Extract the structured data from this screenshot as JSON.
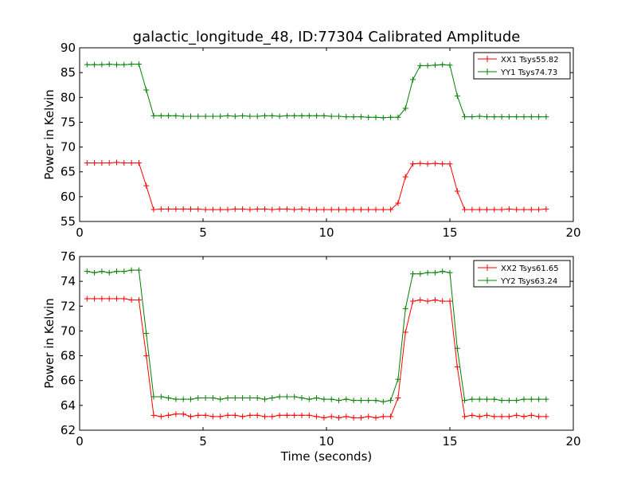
{
  "chart_data": [
    {
      "type": "line",
      "title": "galactic_longitude_48, ID:77304 Calibrated Amplitude",
      "xlabel": "",
      "ylabel": "Power in Kelvin",
      "xlim": [
        0,
        20
      ],
      "ylim": [
        55,
        90
      ],
      "xticks": [
        0,
        5,
        10,
        15,
        20
      ],
      "yticks": [
        55,
        60,
        65,
        70,
        75,
        80,
        85,
        90
      ],
      "grid": false,
      "legend_position": "top-right",
      "x": [
        0.3,
        0.6,
        0.9,
        1.2,
        1.5,
        1.8,
        2.1,
        2.4,
        2.7,
        3.0,
        3.3,
        3.6,
        3.9,
        4.2,
        4.5,
        4.8,
        5.1,
        5.4,
        5.7,
        6.0,
        6.3,
        6.6,
        6.9,
        7.2,
        7.5,
        7.8,
        8.1,
        8.4,
        8.7,
        9.0,
        9.3,
        9.6,
        9.9,
        10.2,
        10.5,
        10.8,
        11.1,
        11.4,
        11.7,
        12.0,
        12.3,
        12.6,
        12.9,
        13.2,
        13.5,
        13.8,
        14.1,
        14.4,
        14.7,
        15.0,
        15.3,
        15.6,
        15.9,
        16.2,
        16.5,
        16.8,
        17.1,
        17.4,
        17.7,
        18.0,
        18.3,
        18.6,
        18.9
      ],
      "series": [
        {
          "name": "XX1 Tsys55.82",
          "color": "#ff0000",
          "values": [
            66.8,
            66.8,
            66.8,
            66.8,
            66.9,
            66.8,
            66.8,
            66.8,
            62.2,
            57.4,
            57.5,
            57.5,
            57.5,
            57.5,
            57.5,
            57.5,
            57.4,
            57.4,
            57.4,
            57.4,
            57.5,
            57.5,
            57.4,
            57.5,
            57.5,
            57.4,
            57.5,
            57.5,
            57.4,
            57.5,
            57.4,
            57.4,
            57.4,
            57.4,
            57.4,
            57.4,
            57.4,
            57.4,
            57.4,
            57.4,
            57.4,
            57.4,
            58.7,
            64.0,
            66.6,
            66.7,
            66.6,
            66.7,
            66.6,
            66.6,
            61.1,
            57.4,
            57.4,
            57.4,
            57.4,
            57.4,
            57.4,
            57.5,
            57.4,
            57.4,
            57.4,
            57.4,
            57.5
          ]
        },
        {
          "name": "YY1 Tsys74.73",
          "color": "#008000",
          "values": [
            86.6,
            86.6,
            86.6,
            86.7,
            86.6,
            86.6,
            86.7,
            86.7,
            81.5,
            76.3,
            76.3,
            76.3,
            76.3,
            76.2,
            76.2,
            76.2,
            76.2,
            76.2,
            76.2,
            76.3,
            76.2,
            76.3,
            76.2,
            76.2,
            76.3,
            76.3,
            76.2,
            76.3,
            76.3,
            76.3,
            76.3,
            76.3,
            76.3,
            76.2,
            76.2,
            76.1,
            76.1,
            76.1,
            76.0,
            76.0,
            75.9,
            76.0,
            76.0,
            77.8,
            83.6,
            86.4,
            86.4,
            86.5,
            86.6,
            86.5,
            80.3,
            76.1,
            76.1,
            76.2,
            76.1,
            76.1,
            76.1,
            76.1,
            76.1,
            76.1,
            76.1,
            76.1,
            76.1
          ]
        }
      ]
    },
    {
      "type": "line",
      "title": "",
      "xlabel": "Time (seconds)",
      "ylabel": "Power in Kelvin",
      "xlim": [
        0,
        20
      ],
      "ylim": [
        62,
        76
      ],
      "xticks": [
        0,
        5,
        10,
        15,
        20
      ],
      "yticks": [
        62,
        64,
        66,
        68,
        70,
        72,
        74,
        76
      ],
      "grid": false,
      "legend_position": "top-right",
      "x": [
        0.3,
        0.6,
        0.9,
        1.2,
        1.5,
        1.8,
        2.1,
        2.4,
        2.7,
        3.0,
        3.3,
        3.6,
        3.9,
        4.2,
        4.5,
        4.8,
        5.1,
        5.4,
        5.7,
        6.0,
        6.3,
        6.6,
        6.9,
        7.2,
        7.5,
        7.8,
        8.1,
        8.4,
        8.7,
        9.0,
        9.3,
        9.6,
        9.9,
        10.2,
        10.5,
        10.8,
        11.1,
        11.4,
        11.7,
        12.0,
        12.3,
        12.6,
        12.9,
        13.2,
        13.5,
        13.8,
        14.1,
        14.4,
        14.7,
        15.0,
        15.3,
        15.6,
        15.9,
        16.2,
        16.5,
        16.8,
        17.1,
        17.4,
        17.7,
        18.0,
        18.3,
        18.6,
        18.9
      ],
      "series": [
        {
          "name": "XX2 Tsys61.65",
          "color": "#ff0000",
          "values": [
            72.6,
            72.6,
            72.6,
            72.6,
            72.6,
            72.6,
            72.5,
            72.5,
            68.0,
            63.2,
            63.1,
            63.2,
            63.3,
            63.3,
            63.1,
            63.2,
            63.2,
            63.1,
            63.1,
            63.2,
            63.2,
            63.1,
            63.2,
            63.2,
            63.1,
            63.1,
            63.2,
            63.2,
            63.2,
            63.2,
            63.2,
            63.1,
            63.0,
            63.1,
            63.0,
            63.1,
            63.0,
            63.0,
            63.1,
            63.0,
            63.1,
            63.1,
            64.6,
            69.9,
            72.4,
            72.5,
            72.4,
            72.5,
            72.4,
            72.4,
            67.1,
            63.1,
            63.2,
            63.1,
            63.2,
            63.1,
            63.1,
            63.1,
            63.2,
            63.1,
            63.2,
            63.1,
            63.1
          ]
        },
        {
          "name": "YY2 Tsys63.24",
          "color": "#008000",
          "values": [
            74.8,
            74.7,
            74.8,
            74.7,
            74.8,
            74.8,
            74.9,
            74.9,
            69.8,
            64.7,
            64.7,
            64.6,
            64.5,
            64.5,
            64.5,
            64.6,
            64.6,
            64.6,
            64.5,
            64.6,
            64.6,
            64.6,
            64.6,
            64.6,
            64.5,
            64.6,
            64.7,
            64.7,
            64.7,
            64.6,
            64.5,
            64.6,
            64.5,
            64.5,
            64.4,
            64.5,
            64.4,
            64.4,
            64.4,
            64.4,
            64.3,
            64.4,
            66.1,
            71.8,
            74.6,
            74.6,
            74.7,
            74.7,
            74.8,
            74.7,
            68.6,
            64.4,
            64.5,
            64.5,
            64.5,
            64.5,
            64.4,
            64.4,
            64.4,
            64.5,
            64.5,
            64.5,
            64.5
          ]
        }
      ]
    }
  ]
}
